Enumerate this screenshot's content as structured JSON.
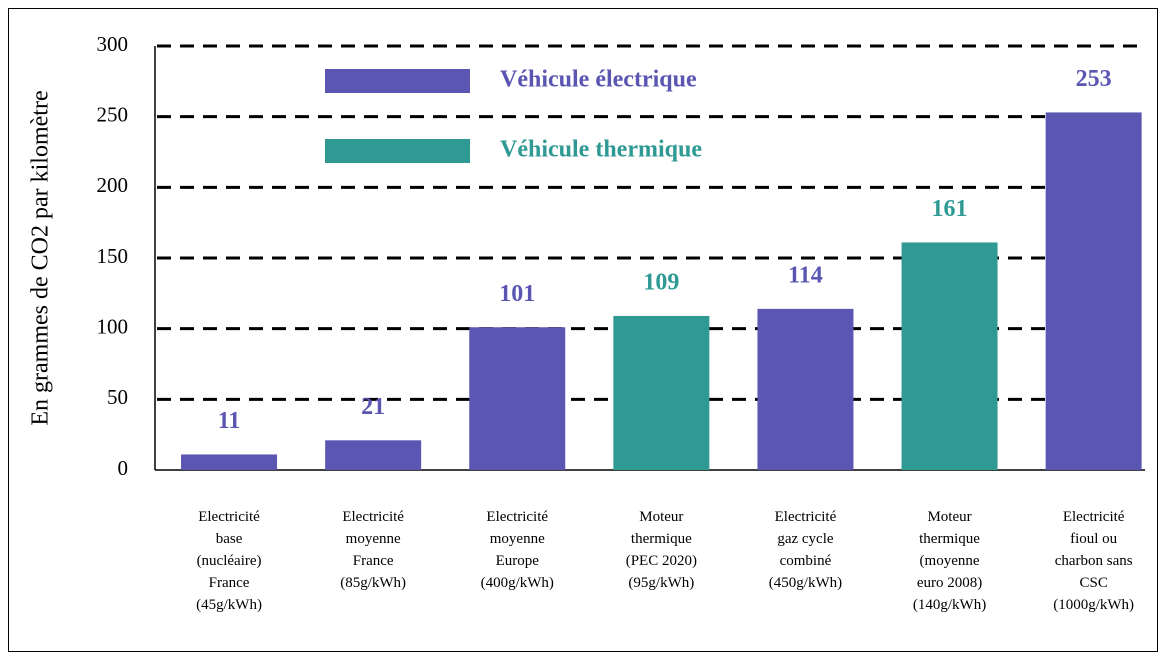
{
  "chart_data": {
    "type": "bar",
    "y_label": "En grammes de CO2 par kilomètre",
    "categories": [
      [
        "Electricité",
        "base",
        "(nucléaire)",
        "France",
        "(45g/kWh)"
      ],
      [
        "Electricité",
        "moyenne",
        "France",
        "(85g/kWh)"
      ],
      [
        "Electricité",
        "moyenne",
        "Europe",
        "(400g/kWh)"
      ],
      [
        "Moteur",
        "thermique",
        "(PEC 2020)",
        "(95g/kWh)"
      ],
      [
        "Electricité",
        "gaz cycle",
        "combiné",
        "(450g/kWh)"
      ],
      [
        "Moteur",
        "thermique",
        "(moyenne",
        "euro 2008)",
        "(140g/kWh)"
      ],
      [
        "Electricité",
        "fioul ou",
        "charbon sans",
        "CSC",
        "(1000g/kWh)"
      ]
    ],
    "series": [
      {
        "name": "Véhicule électrique",
        "color": "#5a56b2",
        "values": [
          11,
          21,
          101,
          null,
          114,
          null,
          253
        ]
      },
      {
        "name": "Véhicule thermique",
        "color": "#2f9a94",
        "values": [
          null,
          null,
          null,
          109,
          null,
          161,
          null
        ]
      }
    ],
    "ylim": [
      0,
      300
    ],
    "yticks": [
      0,
      50,
      100,
      150,
      200,
      250,
      300
    ],
    "grid": true
  }
}
